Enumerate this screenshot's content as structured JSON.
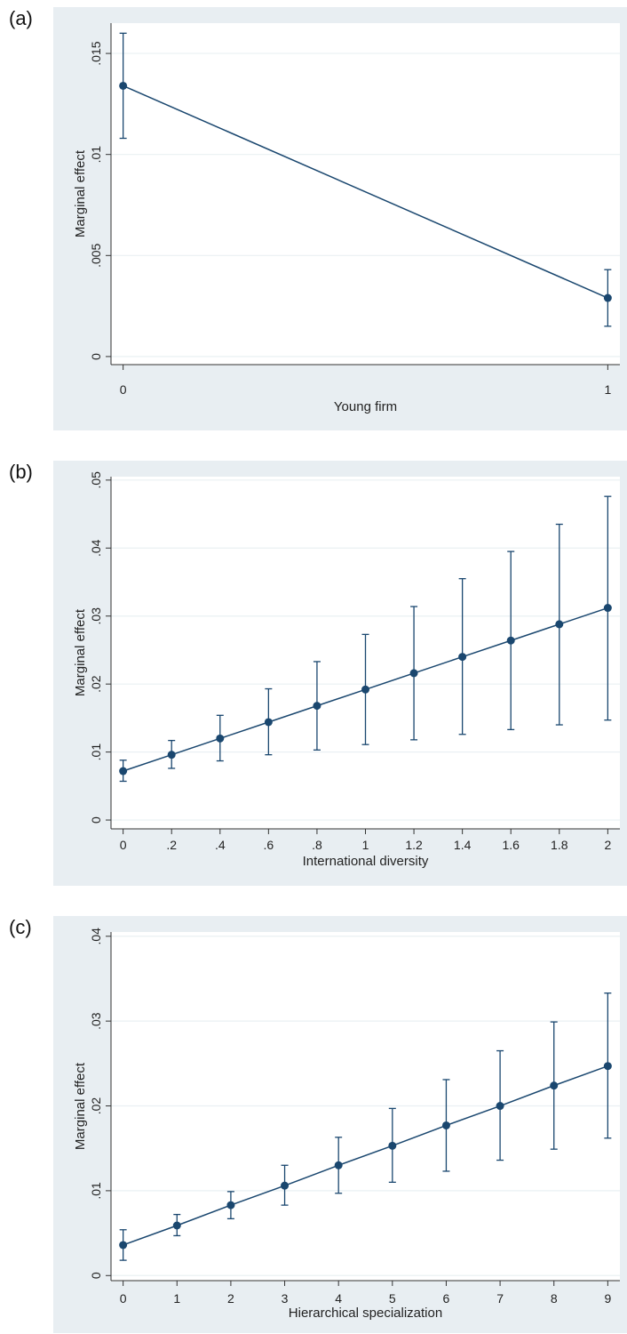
{
  "colors": {
    "outer_background": "#e8eef2",
    "plot_background": "#ffffff",
    "grid": "#eaf0f3",
    "series": "#1a476f",
    "axis": "#333333"
  },
  "chart_data": [
    {
      "panel_label": "(a)",
      "type": "line",
      "xlabel": "Young firm",
      "ylabel": "Marginal effect",
      "x": [
        0,
        1
      ],
      "x_tick_values": [
        0,
        1
      ],
      "x_tick_labels": [
        "0",
        "1"
      ],
      "xlim": [
        -0.025,
        1.025
      ],
      "ylim": [
        -0.0004,
        0.0165
      ],
      "y_tick_values": [
        0,
        0.005,
        0.01,
        0.015
      ],
      "y_tick_labels": [
        "0",
        ".005",
        ".01",
        ".015"
      ],
      "series": [
        {
          "values": [
            0.0134,
            0.0029
          ],
          "ci_lower": [
            0.0108,
            0.0015
          ],
          "ci_upper": [
            0.016,
            0.0043
          ]
        }
      ],
      "grid": true,
      "legend": false,
      "error_bars": true
    },
    {
      "panel_label": "(b)",
      "type": "line",
      "xlabel": "International diversity",
      "ylabel": "Marginal effect",
      "x": [
        0,
        0.2,
        0.4,
        0.6,
        0.8,
        1,
        1.2,
        1.4,
        1.6,
        1.8,
        2
      ],
      "x_tick_values": [
        0,
        0.2,
        0.4,
        0.6,
        0.8,
        1,
        1.2,
        1.4,
        1.6,
        1.8,
        2
      ],
      "x_tick_labels": [
        "0",
        ".2",
        ".4",
        ".6",
        ".8",
        "1",
        "1.2",
        "1.4",
        "1.6",
        "1.8",
        "2"
      ],
      "xlim": [
        -0.05,
        2.05
      ],
      "ylim": [
        -0.0013,
        0.0505
      ],
      "y_tick_values": [
        0,
        0.01,
        0.02,
        0.03,
        0.04,
        0.05
      ],
      "y_tick_labels": [
        "0",
        ".01",
        ".02",
        ".03",
        ".04",
        ".05"
      ],
      "series": [
        {
          "values": [
            0.0072,
            0.0096,
            0.012,
            0.0144,
            0.0168,
            0.0192,
            0.0216,
            0.024,
            0.0264,
            0.0288,
            0.0312
          ],
          "ci_lower": [
            0.0057,
            0.0076,
            0.0087,
            0.0096,
            0.0103,
            0.0111,
            0.0118,
            0.0126,
            0.0133,
            0.014,
            0.0147
          ],
          "ci_upper": [
            0.0088,
            0.0117,
            0.0154,
            0.0193,
            0.0233,
            0.0273,
            0.0314,
            0.0355,
            0.0395,
            0.0435,
            0.0476
          ]
        }
      ],
      "grid": true,
      "legend": false,
      "error_bars": true
    },
    {
      "panel_label": "(c)",
      "type": "line",
      "xlabel": "Hierarchical specialization",
      "ylabel": "Marginal effect",
      "x": [
        0,
        1,
        2,
        3,
        4,
        5,
        6,
        7,
        8,
        9
      ],
      "x_tick_values": [
        0,
        1,
        2,
        3,
        4,
        5,
        6,
        7,
        8,
        9
      ],
      "x_tick_labels": [
        "0",
        "1",
        "2",
        "3",
        "4",
        "5",
        "6",
        "7",
        "8",
        "9"
      ],
      "xlim": [
        -0.225,
        9.225
      ],
      "ylim": [
        -0.0006,
        0.0405
      ],
      "y_tick_values": [
        0,
        0.01,
        0.02,
        0.03,
        0.04
      ],
      "y_tick_labels": [
        "0",
        ".01",
        ".02",
        ".03",
        ".04"
      ],
      "series": [
        {
          "values": [
            0.0036,
            0.0059,
            0.0083,
            0.0106,
            0.013,
            0.0153,
            0.0177,
            0.02,
            0.0224,
            0.0247
          ],
          "ci_lower": [
            0.0018,
            0.0047,
            0.0067,
            0.0083,
            0.0097,
            0.011,
            0.0123,
            0.0136,
            0.0149,
            0.0162
          ],
          "ci_upper": [
            0.0054,
            0.0072,
            0.0099,
            0.013,
            0.0163,
            0.0197,
            0.0231,
            0.0265,
            0.0299,
            0.0333
          ]
        }
      ],
      "grid": true,
      "legend": false,
      "error_bars": true
    }
  ]
}
